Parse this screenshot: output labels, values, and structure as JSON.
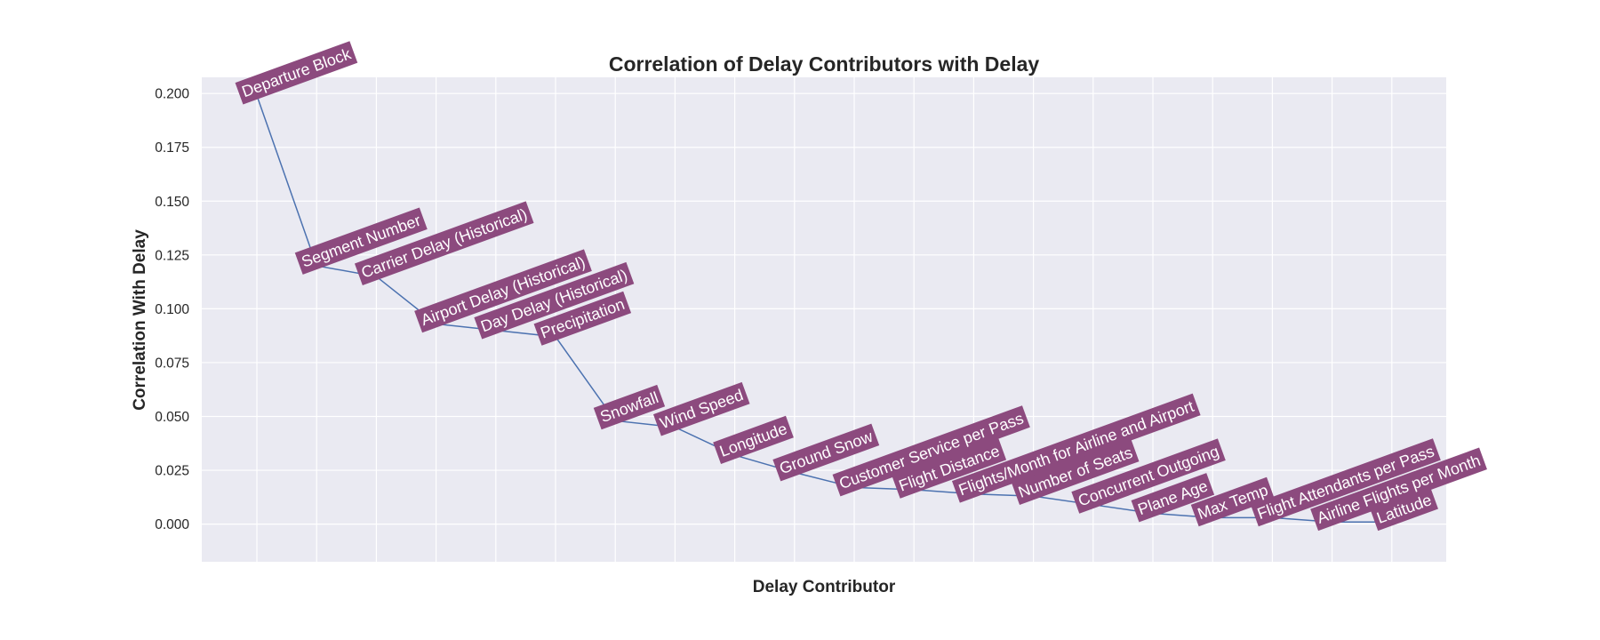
{
  "chart_data": {
    "type": "line",
    "title": "Correlation of Delay Contributors with Delay",
    "xlabel": "Delay Contributor",
    "ylabel": "Correlation With Delay",
    "ylim": [
      -0.0175,
      0.2075
    ],
    "yticks": [
      "0.000",
      "0.025",
      "0.050",
      "0.075",
      "0.100",
      "0.125",
      "0.150",
      "0.175",
      "0.200"
    ],
    "grid": true,
    "legend": "none",
    "colors": {
      "plot_background": "#eaeaf2",
      "grid": "#ffffff",
      "line": "#4c72b0",
      "marker": "#4c72b0",
      "label_box": "#8c4a7e",
      "label_text": "#ffffff"
    },
    "categories": [
      "Departure Block",
      "Segment Number",
      "Carrier Delay (Historical)",
      "Airport Delay (Historical)",
      "Day Delay (Historical)",
      "Precipitation",
      "Snowfall",
      "Wind Speed",
      "Longitude",
      "Ground Snow",
      "Customer Service per Pass",
      "Flight Distance",
      "Flights/Month for Airline and Airport",
      "Number of Seats",
      "Concurrent Outgoing",
      "Plane Age",
      "Max Temp",
      "Flight Attendants per Pass",
      "Airline Flights per Month",
      "Latitude"
    ],
    "values": [
      0.199,
      0.12,
      0.115,
      0.093,
      0.09,
      0.087,
      0.048,
      0.045,
      0.032,
      0.024,
      0.017,
      0.016,
      0.014,
      0.013,
      0.009,
      0.005,
      0.003,
      0.003,
      0.001,
      0.001
    ]
  }
}
